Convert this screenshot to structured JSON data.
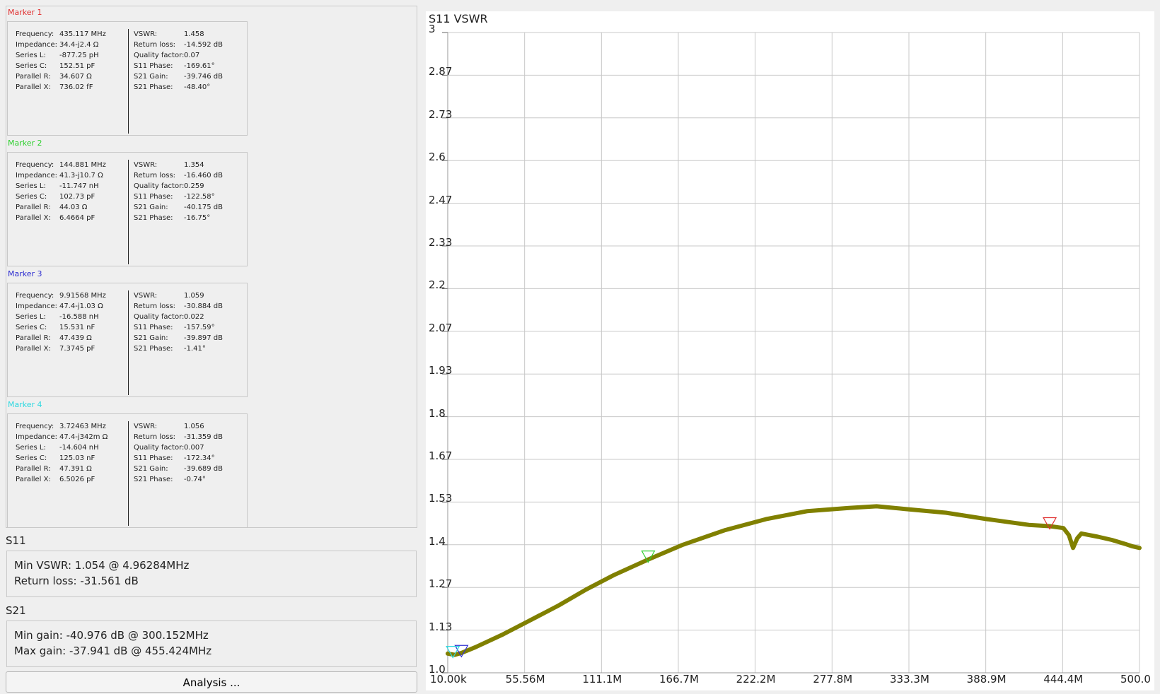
{
  "markers": [
    {
      "title": "Marker 1",
      "color": "#e03030",
      "left": [
        [
          "Frequency:",
          "435.117 MHz"
        ],
        [
          "Impedance:",
          "34.4-j2.4 Ω"
        ],
        [
          "Series L:",
          "-877.25 pH"
        ],
        [
          "Series C:",
          "152.51 pF"
        ],
        [
          "Parallel R:",
          "34.607 Ω"
        ],
        [
          "Parallel X:",
          "736.02 fF"
        ]
      ],
      "right": [
        [
          "VSWR:",
          "1.458"
        ],
        [
          "Return loss:",
          "-14.592 dB"
        ],
        [
          "Quality factor:",
          "0.07"
        ],
        [
          "S11 Phase:",
          "-169.61°"
        ],
        [
          "S21 Gain:",
          "-39.746 dB"
        ],
        [
          "S21 Phase:",
          "-48.40°"
        ]
      ]
    },
    {
      "title": "Marker 2",
      "color": "#30d030",
      "left": [
        [
          "Frequency:",
          "144.881 MHz"
        ],
        [
          "Impedance:",
          "41.3-j10.7 Ω"
        ],
        [
          "Series L:",
          "-11.747 nH"
        ],
        [
          "Series C:",
          "102.73 pF"
        ],
        [
          "Parallel R:",
          "44.03 Ω"
        ],
        [
          "Parallel X:",
          "6.4664 pF"
        ]
      ],
      "right": [
        [
          "VSWR:",
          "1.354"
        ],
        [
          "Return loss:",
          "-16.460 dB"
        ],
        [
          "Quality factor:",
          "0.259"
        ],
        [
          "S11 Phase:",
          "-122.58°"
        ],
        [
          "S21 Gain:",
          "-40.175 dB"
        ],
        [
          "S21 Phase:",
          "-16.75°"
        ]
      ]
    },
    {
      "title": "Marker 3",
      "color": "#3030d0",
      "left": [
        [
          "Frequency:",
          "9.91568 MHz"
        ],
        [
          "Impedance:",
          "47.4-j1.03 Ω"
        ],
        [
          "Series L:",
          "-16.588 nH"
        ],
        [
          "Series C:",
          "15.531 nF"
        ],
        [
          "Parallel R:",
          "47.439 Ω"
        ],
        [
          "Parallel X:",
          "7.3745 pF"
        ]
      ],
      "right": [
        [
          "VSWR:",
          "1.059"
        ],
        [
          "Return loss:",
          "-30.884 dB"
        ],
        [
          "Quality factor:",
          "0.022"
        ],
        [
          "S11 Phase:",
          "-157.59°"
        ],
        [
          "S21 Gain:",
          "-39.897 dB"
        ],
        [
          "S21 Phase:",
          "-1.41°"
        ]
      ]
    },
    {
      "title": "Marker 4",
      "color": "#30d8e0",
      "left": [
        [
          "Frequency:",
          "3.72463 MHz"
        ],
        [
          "Impedance:",
          "47.4-j342m Ω"
        ],
        [
          "Series L:",
          "-14.604 nH"
        ],
        [
          "Series C:",
          "125.03 nF"
        ],
        [
          "Parallel R:",
          "47.391 Ω"
        ],
        [
          "Parallel X:",
          "6.5026 pF"
        ]
      ],
      "right": [
        [
          "VSWR:",
          "1.056"
        ],
        [
          "Return loss:",
          "-31.359 dB"
        ],
        [
          "Quality factor:",
          "0.007"
        ],
        [
          "S11 Phase:",
          "-172.34°"
        ],
        [
          "S21 Gain:",
          "-39.689 dB"
        ],
        [
          "S21 Phase:",
          "-0.74°"
        ]
      ]
    }
  ],
  "s11": {
    "title": "S11",
    "line1": "Min VSWR:   1.054 @ 4.96284MHz",
    "line2": "Return loss:  -31.561 dB"
  },
  "s21": {
    "title": "S21",
    "line1": "Min gain:  -40.976 dB @ 300.152MHz",
    "line2": "Max gain:  -37.941 dB @ 455.424MHz"
  },
  "analysis_button": "Analysis ...",
  "chart_data": {
    "type": "line",
    "title": "S11 VSWR",
    "line_color": "#808000",
    "grid": true,
    "xlim_mhz": [
      0.01,
      500.0
    ],
    "ylim": [
      1.0,
      3.0
    ],
    "x_ticks": [
      "10.00k",
      "55.56M",
      "111.1M",
      "166.7M",
      "222.2M",
      "277.8M",
      "333.3M",
      "388.9M",
      "444.4M",
      "500.0"
    ],
    "y_ticks": [
      "3",
      "2.87",
      "2.73",
      "2.6",
      "2.47",
      "2.33",
      "2.2",
      "2.07",
      "1.93",
      "1.8",
      "1.67",
      "1.53",
      "1.4",
      "1.27",
      "1.13",
      "1.0"
    ],
    "series": [
      {
        "x_mhz": [
          0.01,
          5,
          10,
          20,
          40,
          60,
          80,
          100,
          120,
          145,
          170,
          200,
          230,
          260,
          290,
          310,
          330,
          360,
          390,
          420,
          435,
          445,
          449,
          452,
          455,
          458,
          470,
          480,
          490,
          495,
          500
        ],
        "y": [
          1.06,
          1.056,
          1.062,
          1.08,
          1.12,
          1.165,
          1.21,
          1.26,
          1.305,
          1.354,
          1.4,
          1.445,
          1.48,
          1.505,
          1.515,
          1.52,
          1.512,
          1.5,
          1.48,
          1.462,
          1.458,
          1.452,
          1.43,
          1.39,
          1.42,
          1.435,
          1.425,
          1.415,
          1.402,
          1.395,
          1.39
        ]
      }
    ],
    "markers": [
      {
        "label": "1",
        "x_mhz": 435.117,
        "y": 1.458,
        "color": "#e03030"
      },
      {
        "label": "2",
        "x_mhz": 144.881,
        "y": 1.354,
        "color": "#30d030"
      },
      {
        "label": "3",
        "x_mhz": 9.91568,
        "y": 1.059,
        "color": "#3030d0"
      },
      {
        "label": "4",
        "x_mhz": 3.72463,
        "y": 1.056,
        "color": "#30d8e0"
      }
    ]
  }
}
